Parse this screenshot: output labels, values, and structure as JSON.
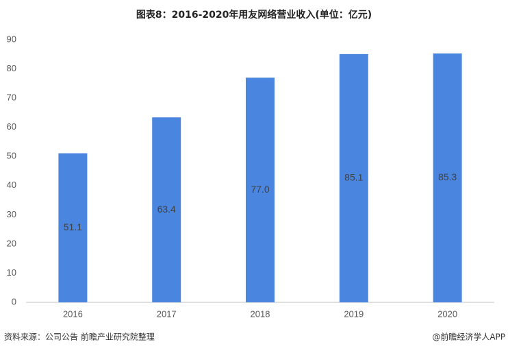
{
  "chart_data": {
    "type": "bar",
    "title": "图表8：2016-2020年用友网络营业收入(单位：亿元)",
    "categories": [
      "2016",
      "2017",
      "2018",
      "2019",
      "2020"
    ],
    "values": [
      51.1,
      63.4,
      77.0,
      85.1,
      85.3
    ],
    "value_labels": [
      "51.1",
      "63.4",
      "77.0",
      "85.1",
      "85.3"
    ],
    "color": "#4a86e0",
    "ylim": [
      0,
      90
    ],
    "yticks": [
      0,
      10,
      20,
      30,
      40,
      50,
      60,
      70,
      80,
      90
    ],
    "grid": false,
    "source": "资料来源：公司公告 前瞻产业研究院整理",
    "credit": "@前瞻经济学人APP"
  }
}
